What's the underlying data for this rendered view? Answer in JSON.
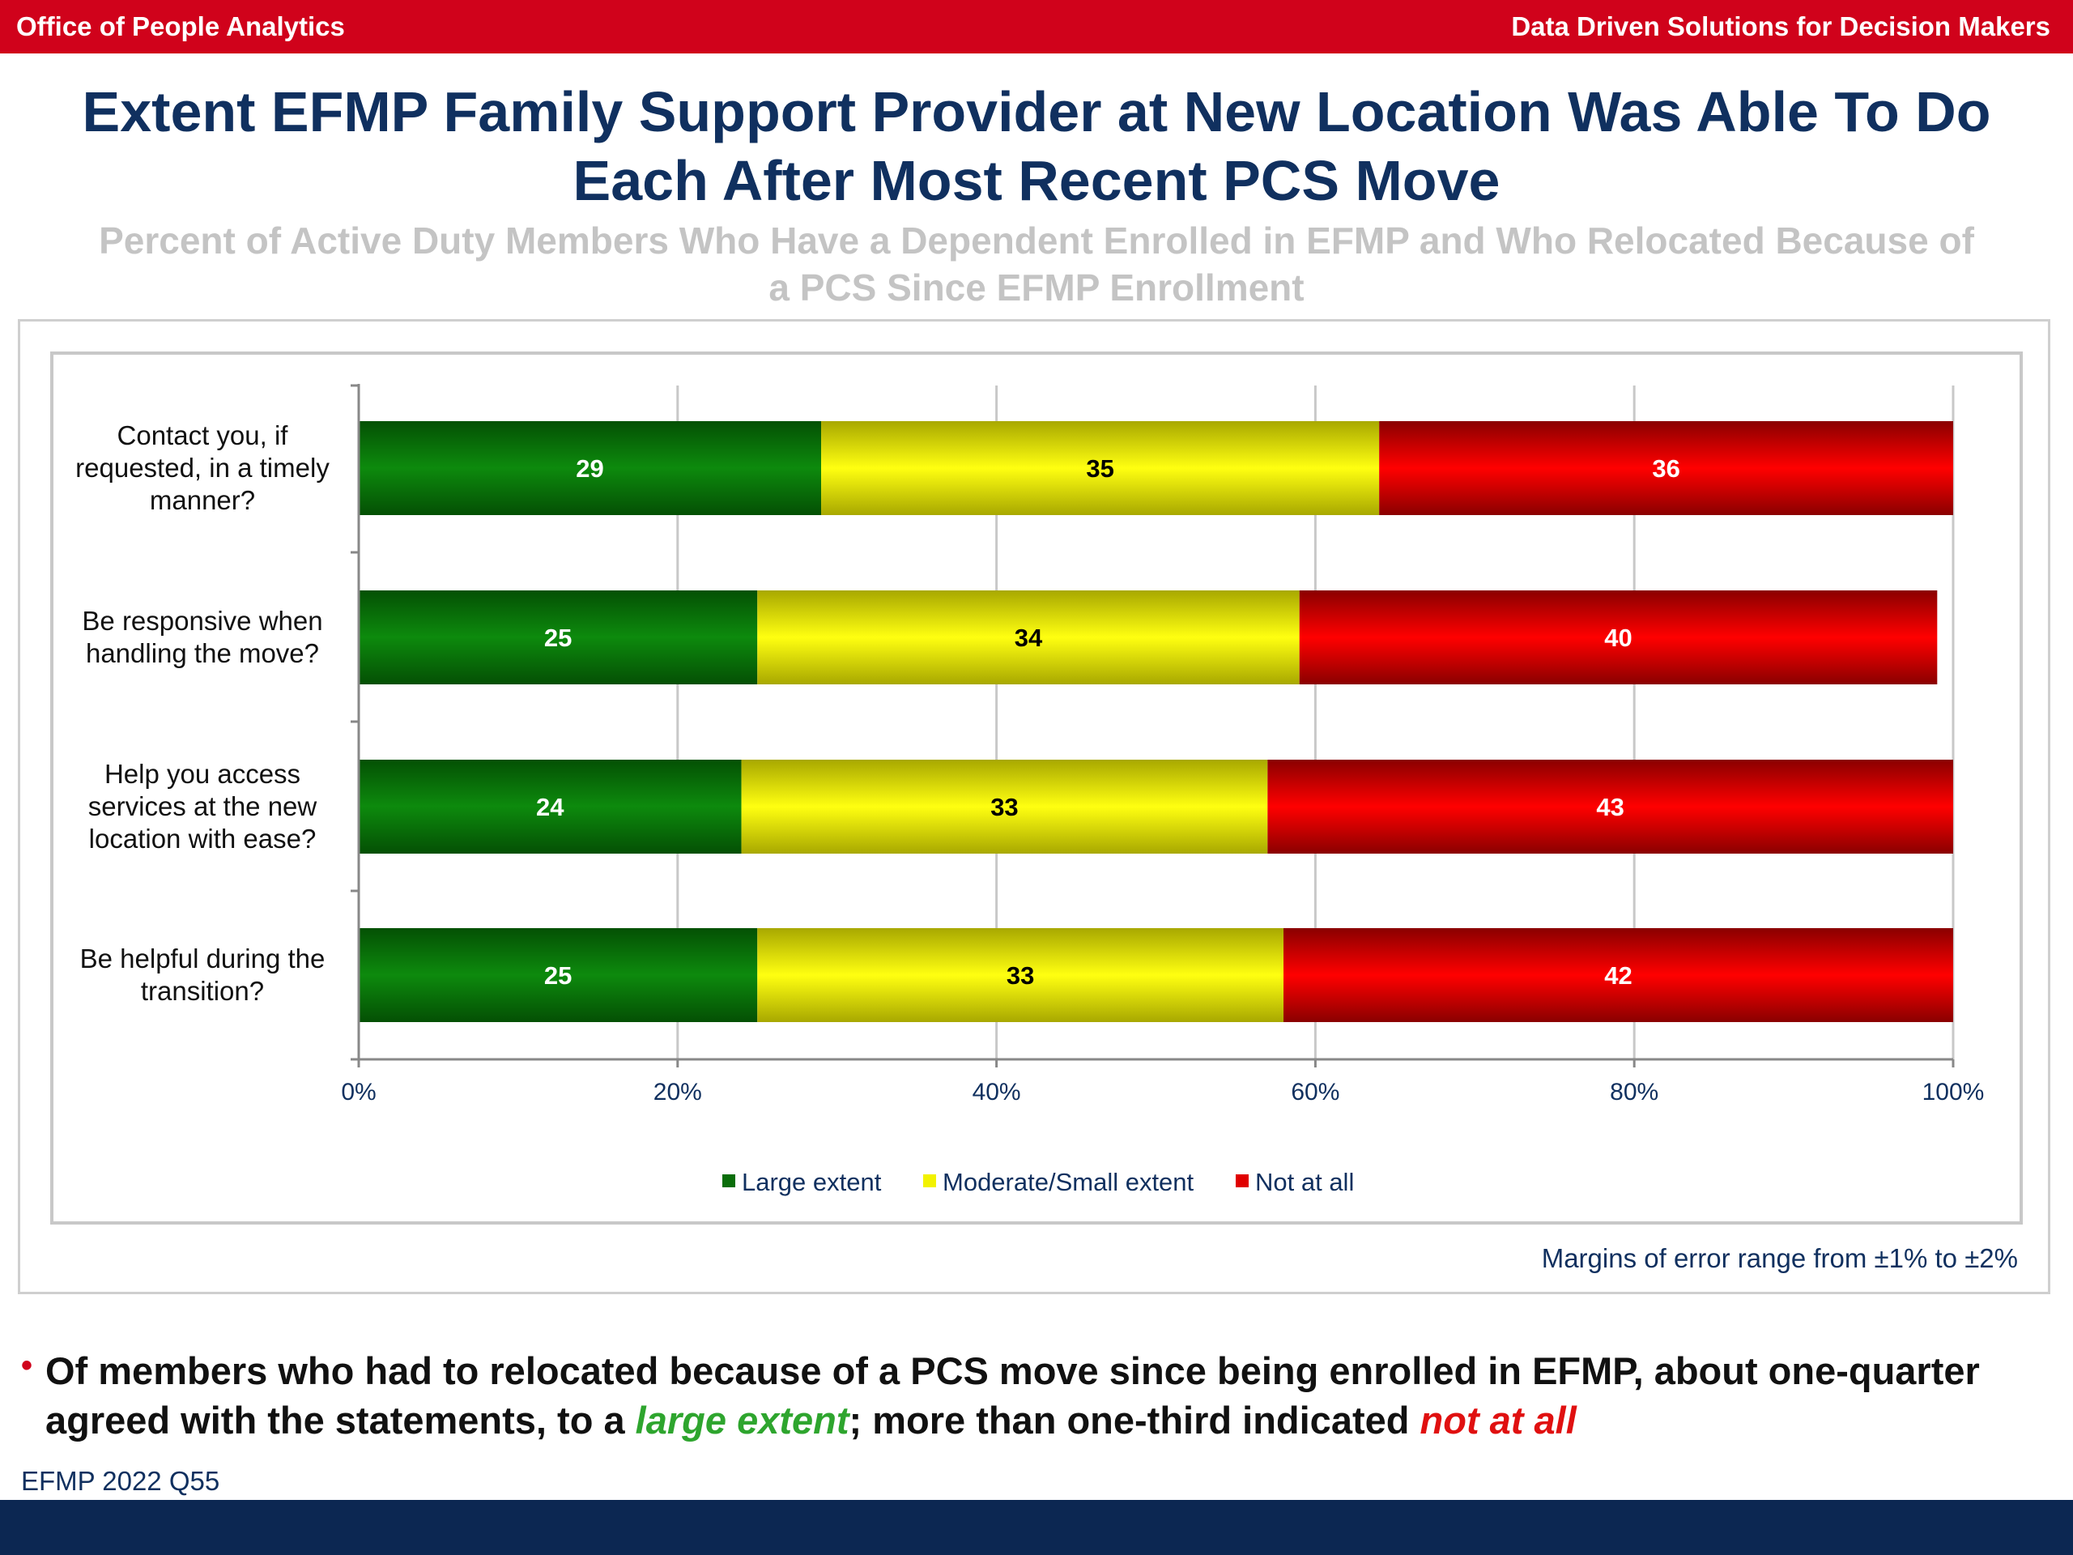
{
  "header": {
    "left": "Office of People Analytics",
    "right": "Data Driven Solutions for Decision Makers"
  },
  "title_line1": "Extent EFMP Family Support Provider at New Location Was Able To Do",
  "title_line2": "Each After Most Recent PCS Move",
  "subtitle_line1": "Percent of Active Duty Members Who Have a Dependent Enrolled in EFMP and Who Relocated Because of",
  "subtitle_line2": "a PCS Since EFMP Enrollment",
  "chart_data": {
    "type": "bar",
    "orientation": "horizontal",
    "stacked": true,
    "categories": [
      [
        "Contact you, if",
        "requested, in a timely",
        "manner?"
      ],
      [
        "Be responsive when",
        "handling the move?"
      ],
      [
        "Help you access",
        "services at the new",
        "location with ease?"
      ],
      [
        "Be helpful during the",
        "transition?"
      ]
    ],
    "series": [
      {
        "name": "Large extent",
        "color": "#0a6e0a",
        "label_color": "#ffffff",
        "values": [
          29,
          25,
          24,
          25
        ]
      },
      {
        "name": "Moderate/Small extent",
        "color": "#f2f200",
        "label_color": "#000000",
        "values": [
          35,
          34,
          33,
          33
        ]
      },
      {
        "name": "Not at all",
        "color": "#e00000",
        "label_color": "#ffffff",
        "values": [
          36,
          40,
          43,
          42
        ]
      }
    ],
    "xlim": [
      0,
      100
    ],
    "xticks": [
      "0%",
      "20%",
      "40%",
      "60%",
      "80%",
      "100%"
    ],
    "grid": true,
    "legend_position": "bottom"
  },
  "margin_note": "Margins of error range from ±1% to ±2%",
  "bullet": {
    "part1": "Of members who had to relocated because of a PCS move since being enrolled in EFMP, about one-quarter agreed with the statements, to a ",
    "highlight1": "large extent",
    "part2": "; more than one-third indicated ",
    "highlight2": "not at all"
  },
  "source": "EFMP 2022 Q55"
}
